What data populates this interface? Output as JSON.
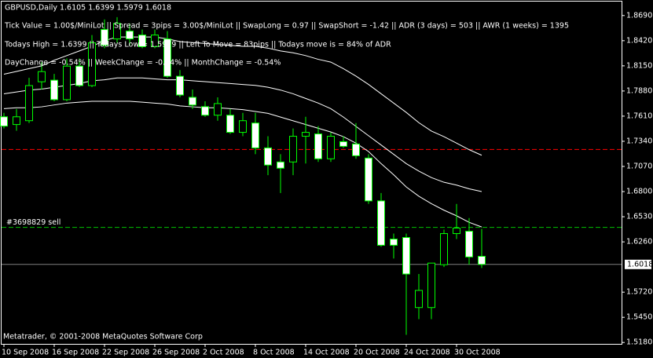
{
  "chart_data": {
    "type": "candlestick",
    "title": "GBPUSD,Daily  1.6105 1.6399 1.5979 1.6018",
    "annotations": [
      "Tick Value = 1.00$/MiniLot || Spread = 3pips = 3.00$/MiniLot || SwapLong = 0.97 || SwapShort = -1.42 || ADR (3 days) = 503 || AWR (1 weeks) = 1395",
      "Todays High = 1.6399 || Todays Low = 1.5979 || Left To Move = 83pips || Todays move is = 84% of ADR",
      "DayChange = -0.54% || WeekChange = -0.54% || MonthChange = -0.54%"
    ],
    "footer": "Metatrader, © 2001-2008 MetaQuotes Software Corp",
    "categories": [
      "10 Sep 2008",
      null,
      null,
      null,
      "16 Sep 2008",
      null,
      null,
      null,
      "22 Sep 2008",
      null,
      null,
      null,
      "26 Sep 2008",
      null,
      null,
      null,
      "2 Oct 2008",
      null,
      null,
      null,
      "8 Oct 2008",
      null,
      null,
      null,
      "14 Oct 2008",
      null,
      null,
      null,
      "20 Oct 2008",
      null,
      null,
      null,
      "24 Oct 2008",
      null,
      null,
      null,
      "30 Oct 2008",
      null,
      null
    ],
    "open": [
      1.7603,
      1.752,
      1.7561,
      1.7979,
      1.7996,
      1.7787,
      1.8147,
      1.7938,
      1.854,
      1.8439,
      1.8523,
      1.8481,
      1.8356,
      1.8439,
      1.8038,
      1.7812,
      1.7712,
      1.762,
      1.762,
      1.7436,
      1.7536,
      1.7269,
      1.7118,
      1.7118,
      1.7394,
      1.7419,
      1.7152,
      1.7336,
      1.7311,
      1.716,
      1.67,
      1.629,
      1.6307,
      1.5555,
      1.5555,
      1.6015,
      1.6349,
      1.6374,
      1.6105
    ],
    "high": [
      1.7645,
      1.7687,
      1.8021,
      1.8188,
      1.8063,
      1.823,
      1.823,
      1.8481,
      1.8648,
      1.8673,
      1.8606,
      1.854,
      1.854,
      1.8523,
      1.8105,
      1.7896,
      1.777,
      1.7812,
      1.7687,
      1.7645,
      1.7645,
      1.7394,
      1.7202,
      1.7478,
      1.7603,
      1.7503,
      1.7436,
      1.7394,
      1.7536,
      1.7202,
      1.6784,
      1.6349,
      1.6349,
      1.5915,
      1.6032,
      1.6391,
      1.6667,
      1.6516,
      1.6399
    ],
    "low": [
      1.7478,
      1.7453,
      1.7536,
      1.7896,
      1.777,
      1.777,
      1.7921,
      1.7921,
      1.8339,
      1.8397,
      1.8372,
      1.8339,
      1.8339,
      1.8021,
      1.7812,
      1.7687,
      1.7603,
      1.7561,
      1.7419,
      1.7394,
      1.7202,
      1.6976,
      1.6784,
      1.6976,
      1.7102,
      1.7118,
      1.7118,
      1.7269,
      1.7152,
      1.6667,
      1.6207,
      1.6082,
      1.5262,
      1.543,
      1.543,
      1.599,
      1.629,
      1.6015,
      1.5979
    ],
    "close": [
      1.7503,
      1.7603,
      1.7938,
      1.8088,
      1.7787,
      1.8147,
      1.7938,
      1.8397,
      1.8372,
      1.8606,
      1.8439,
      1.8356,
      1.8481,
      1.8038,
      1.7837,
      1.7729,
      1.762,
      1.7745,
      1.7436,
      1.7561,
      1.7269,
      1.7085,
      1.7051,
      1.7394,
      1.7436,
      1.7152,
      1.7394,
      1.7286,
      1.7185,
      1.67,
      1.6224,
      1.6224,
      1.5915,
      1.5739,
      1.6032,
      1.6349,
      1.6408,
      1.6098,
      1.6018
    ],
    "up_color": "#000000",
    "down_color": "#ffffff",
    "wick_color": "#00ff00",
    "lines": [
      {
        "color": "#ffffff",
        "values": [
          1.806,
          1.809,
          1.812,
          1.815,
          1.821,
          1.826,
          1.831,
          1.836,
          1.842,
          1.846,
          1.846,
          1.846,
          1.846,
          1.844,
          1.841,
          1.84,
          1.839,
          1.838,
          1.837,
          1.836,
          1.836,
          1.834,
          1.831,
          1.829,
          1.826,
          1.822,
          1.819,
          1.812,
          1.804,
          1.795,
          1.785,
          1.775,
          1.765,
          1.754,
          1.745,
          1.739,
          1.732,
          1.725,
          1.719
        ]
      },
      {
        "color": "#ffffff",
        "values": [
          1.785,
          1.787,
          1.789,
          1.79,
          1.792,
          1.794,
          1.796,
          1.799,
          1.8,
          1.802,
          1.802,
          1.802,
          1.801,
          1.8,
          1.8,
          1.799,
          1.798,
          1.797,
          1.796,
          1.795,
          1.794,
          1.792,
          1.789,
          1.785,
          1.78,
          1.775,
          1.769,
          1.76,
          1.75,
          1.74,
          1.73,
          1.72,
          1.71,
          1.702,
          1.695,
          1.69,
          1.687,
          1.683,
          1.68
        ]
      },
      {
        "color": "#ffffff",
        "values": [
          1.769,
          1.77,
          1.77,
          1.771,
          1.773,
          1.775,
          1.776,
          1.777,
          1.777,
          1.777,
          1.777,
          1.776,
          1.775,
          1.774,
          1.772,
          1.771,
          1.77,
          1.77,
          1.769,
          1.768,
          1.766,
          1.764,
          1.76,
          1.756,
          1.752,
          1.748,
          1.744,
          1.739,
          1.732,
          1.723,
          1.71,
          1.698,
          1.685,
          1.675,
          1.667,
          1.66,
          1.654,
          1.647,
          1.642
        ]
      }
    ],
    "levels": [
      {
        "value": 1.7252,
        "color": "#ff0000"
      },
      {
        "value": 1.6416,
        "color": "#00c000",
        "label": "#3698829 sell"
      }
    ],
    "last_price": 1.6018,
    "last_price_color": "#808080",
    "ylim": [
      1.5165,
      1.884
    ],
    "yticks": [
      {
        "value": 1.869,
        "label": "1.8690"
      },
      {
        "value": 1.842,
        "label": "1.8420"
      },
      {
        "value": 1.815,
        "label": "1.8150"
      },
      {
        "value": 1.788,
        "label": "1.7880"
      },
      {
        "value": 1.761,
        "label": "1.7610"
      },
      {
        "value": 1.734,
        "label": "1.7340"
      },
      {
        "value": 1.707,
        "label": "1.7070"
      },
      {
        "value": 1.68,
        "label": "1.6800"
      },
      {
        "value": 1.653,
        "label": "1.6530"
      },
      {
        "value": 1.626,
        "label": "1.6260"
      },
      {
        "value": 1.572,
        "label": "1.5720"
      },
      {
        "value": 1.545,
        "label": "1.5450"
      },
      {
        "value": 1.518,
        "label": "1.5180"
      }
    ],
    "grid": false
  }
}
